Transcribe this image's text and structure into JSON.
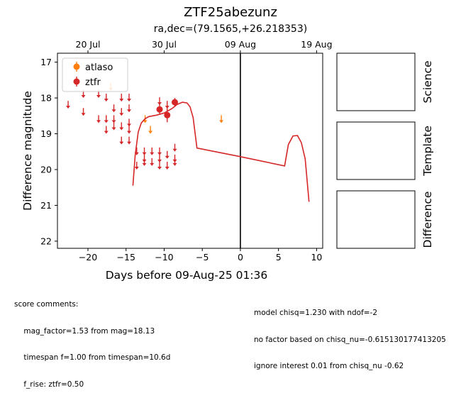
{
  "header": {
    "title": "ZTF25abezunz",
    "subtitle": "ra,dec=(79.1565,+26.218353)"
  },
  "chart_data": {
    "type": "scatter",
    "xlabel": "Days before 09-Aug-25 01:36",
    "ylabel": "Difference magnitude",
    "xlim": [
      -24,
      10.8
    ],
    "ylim": [
      22.2,
      16.75
    ],
    "y_inverted": true,
    "xticks": [
      -20,
      -15,
      -10,
      -5,
      0,
      5,
      10
    ],
    "xtick_labels": [
      "−20",
      "−15",
      "−10",
      "−5",
      "0",
      "5",
      "10"
    ],
    "yticks": [
      17,
      18,
      19,
      20,
      21,
      22
    ],
    "top_axis": {
      "ticks": [
        -20,
        -10,
        0,
        10
      ],
      "labels": [
        "20 Jul",
        "30 Jul",
        "09 Aug",
        "19 Aug"
      ]
    },
    "vline_x": 0,
    "legend": {
      "placement": "top-left",
      "entries": [
        "atlaso",
        "ztfr"
      ]
    },
    "series": [
      {
        "name": "atlaso",
        "color": "#ff7f0e",
        "upper_limits": [
          [
            -17,
            17.7
          ],
          [
            -12.5,
            18.6
          ],
          [
            -11.8,
            18.9
          ],
          [
            -2.5,
            18.6
          ]
        ],
        "detections": []
      },
      {
        "name": "ztfr",
        "color": "#d62728",
        "upper_limits": [
          [
            -22.6,
            18.2
          ],
          [
            -20.6,
            17.9
          ],
          [
            -20.6,
            18.4
          ],
          [
            -18.6,
            17.9
          ],
          [
            -18.6,
            18.6
          ],
          [
            -17.6,
            18.0
          ],
          [
            -17.6,
            18.6
          ],
          [
            -17.6,
            18.9
          ],
          [
            -16.6,
            18.3
          ],
          [
            -16.6,
            18.6
          ],
          [
            -16.6,
            18.8
          ],
          [
            -15.6,
            18.0
          ],
          [
            -15.6,
            18.4
          ],
          [
            -15.6,
            18.8
          ],
          [
            -15.6,
            19.2
          ],
          [
            -14.6,
            18.0
          ],
          [
            -14.6,
            18.3
          ],
          [
            -14.6,
            18.7
          ],
          [
            -14.6,
            18.9
          ],
          [
            -14.6,
            19.2
          ],
          [
            -13.6,
            19.5
          ],
          [
            -13.6,
            19.9
          ],
          [
            -12.6,
            19.5
          ],
          [
            -12.6,
            19.7
          ],
          [
            -12.6,
            19.8
          ],
          [
            -11.6,
            19.5
          ],
          [
            -11.6,
            19.8
          ],
          [
            -10.6,
            19.5
          ],
          [
            -10.6,
            19.7
          ],
          [
            -10.6,
            19.9
          ],
          [
            -9.6,
            19.6
          ],
          [
            -9.6,
            19.9
          ],
          [
            -8.6,
            19.4
          ],
          [
            -8.6,
            19.7
          ],
          [
            -8.6,
            19.8
          ],
          [
            -10.6,
            18.1
          ],
          [
            -9.6,
            18.2
          ]
        ],
        "detections": [
          {
            "x": -10.6,
            "y": 18.32,
            "err": 0.15
          },
          {
            "x": -9.6,
            "y": 18.48,
            "err": 0.2
          },
          {
            "x": -8.6,
            "y": 18.12,
            "err": 0.12
          }
        ],
        "model_curve": [
          [
            -14.1,
            20.45
          ],
          [
            -13.8,
            19.6
          ],
          [
            -13.4,
            18.95
          ],
          [
            -13.0,
            18.7
          ],
          [
            -12.5,
            18.58
          ],
          [
            -12.0,
            18.52
          ],
          [
            -11.0,
            18.48
          ],
          [
            -10.0,
            18.42
          ],
          [
            -9.0,
            18.3
          ],
          [
            -8.3,
            18.18
          ],
          [
            -7.6,
            18.12
          ],
          [
            -7.0,
            18.14
          ],
          [
            -6.6,
            18.25
          ],
          [
            -6.2,
            18.55
          ],
          [
            -5.7,
            19.4
          ],
          [
            0,
            19.64
          ],
          [
            5.8,
            19.9
          ],
          [
            6.3,
            19.3
          ],
          [
            6.9,
            19.06
          ],
          [
            7.5,
            19.05
          ],
          [
            8.0,
            19.25
          ],
          [
            8.5,
            19.7
          ],
          [
            9.0,
            20.9
          ]
        ]
      }
    ]
  },
  "stamps": [
    {
      "label": "Science"
    },
    {
      "label": "Template"
    },
    {
      "label": "Difference"
    }
  ],
  "comments": {
    "score": [
      "score comments:",
      "    mag_factor=1.53 from mag=18.13",
      "    timespan f=1.00 from timespan=10.6d",
      "    f_rise: ztfr=0.50"
    ],
    "model": [
      "model chisq=1.230 with ndof=-2",
      "no factor based on chisq_nu=-0.615130177413205",
      "ignore interest 0.01 from chisq_nu -0.62"
    ]
  }
}
